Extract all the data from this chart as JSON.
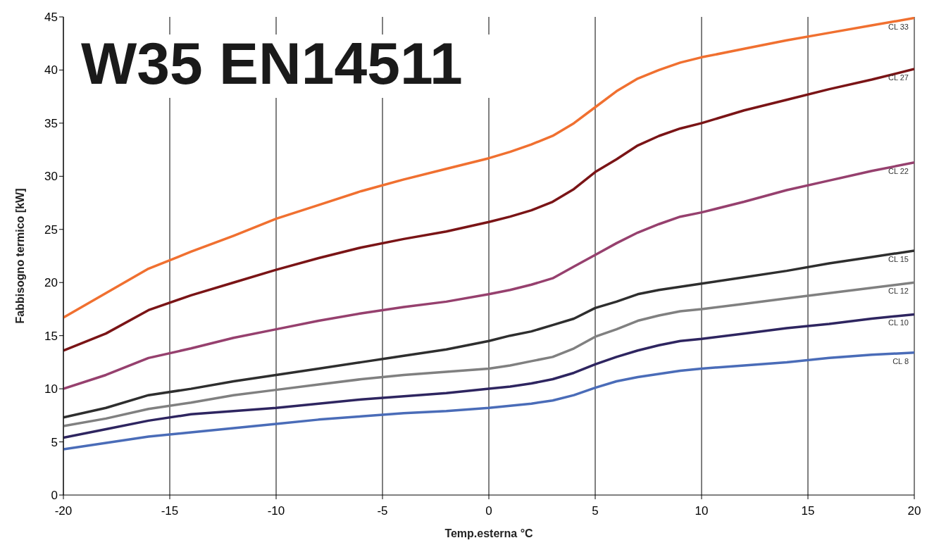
{
  "chart_data": {
    "type": "line",
    "title": "W35 EN14511",
    "xlabel": "Temp.esterna °C",
    "ylabel": "Fabbisogno termico [kW]",
    "x": [
      -20,
      -18,
      -16,
      -14,
      -12,
      -10,
      -8,
      -6,
      -4,
      -2,
      0,
      1,
      2,
      3,
      4,
      5,
      6,
      7,
      8,
      9,
      10,
      12,
      14,
      16,
      18,
      20
    ],
    "series": [
      {
        "name": "CL 33",
        "color": "#f07030",
        "values": [
          16.7,
          19.0,
          21.3,
          22.9,
          24.4,
          26.0,
          27.3,
          28.6,
          29.7,
          30.7,
          31.7,
          32.3,
          33.0,
          33.8,
          35.0,
          36.5,
          38.0,
          39.2,
          40.0,
          40.7,
          41.2,
          42.0,
          42.8,
          43.5,
          44.2,
          44.9
        ]
      },
      {
        "name": "CL 27",
        "color": "#7a1416",
        "values": [
          13.6,
          15.2,
          17.4,
          18.8,
          20.0,
          21.2,
          22.3,
          23.3,
          24.1,
          24.8,
          25.7,
          26.2,
          26.8,
          27.6,
          28.8,
          30.4,
          31.6,
          32.9,
          33.8,
          34.5,
          35.0,
          36.2,
          37.2,
          38.2,
          39.1,
          40.1
        ]
      },
      {
        "name": "CL 22",
        "color": "#96406e",
        "values": [
          10.0,
          11.3,
          12.9,
          13.8,
          14.8,
          15.6,
          16.4,
          17.1,
          17.7,
          18.2,
          18.9,
          19.3,
          19.8,
          20.4,
          21.5,
          22.6,
          23.7,
          24.7,
          25.5,
          26.2,
          26.6,
          27.6,
          28.7,
          29.6,
          30.5,
          31.3
        ]
      },
      {
        "name": "CL 15",
        "color": "#2e2e2e",
        "values": [
          7.3,
          8.2,
          9.4,
          10.0,
          10.7,
          11.3,
          11.9,
          12.5,
          13.1,
          13.7,
          14.5,
          15.0,
          15.4,
          16.0,
          16.6,
          17.6,
          18.2,
          18.9,
          19.3,
          19.6,
          19.9,
          20.5,
          21.1,
          21.8,
          22.4,
          23.0
        ]
      },
      {
        "name": "CL 12",
        "color": "#808080",
        "values": [
          6.5,
          7.2,
          8.1,
          8.7,
          9.4,
          9.9,
          10.4,
          10.9,
          11.3,
          11.6,
          11.9,
          12.2,
          12.6,
          13.0,
          13.8,
          14.9,
          15.6,
          16.4,
          16.9,
          17.3,
          17.5,
          18.0,
          18.5,
          19.0,
          19.5,
          20.0
        ]
      },
      {
        "name": "CL 10",
        "color": "#2e2560",
        "values": [
          5.4,
          6.2,
          7.0,
          7.6,
          7.9,
          8.2,
          8.6,
          9.0,
          9.3,
          9.6,
          10.0,
          10.2,
          10.5,
          10.9,
          11.5,
          12.3,
          13.0,
          13.6,
          14.1,
          14.5,
          14.7,
          15.2,
          15.7,
          16.1,
          16.6,
          17.0
        ]
      },
      {
        "name": "CL 8",
        "color": "#4a6cb8",
        "values": [
          4.3,
          4.9,
          5.5,
          5.9,
          6.3,
          6.7,
          7.1,
          7.4,
          7.7,
          7.9,
          8.2,
          8.4,
          8.6,
          8.9,
          9.4,
          10.1,
          10.7,
          11.1,
          11.4,
          11.7,
          11.9,
          12.2,
          12.5,
          12.9,
          13.2,
          13.4
        ]
      }
    ],
    "xlim": [
      -20,
      20
    ],
    "xticks": [
      -20,
      -15,
      -10,
      -5,
      0,
      5,
      10,
      15,
      20
    ],
    "ylim": [
      0,
      45
    ],
    "yticks": [
      0,
      5,
      10,
      15,
      20,
      25,
      30,
      35,
      40,
      45
    ],
    "grid": "x",
    "legend": false,
    "marker": "none",
    "line_style": "solid"
  }
}
